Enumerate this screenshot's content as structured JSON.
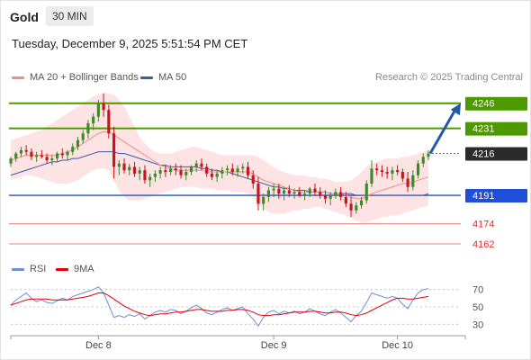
{
  "header": {
    "instrument": "Gold",
    "timeframe": "30 MIN",
    "datetime": "Tuesday, December 9, 2025 5:51:54 PM CET"
  },
  "legend": {
    "ma20_label": "MA 20 + Bollinger Bands",
    "ma50_label": "MA 50",
    "credit": "Research © 2025 Trading Central",
    "rsi_label": "RSI",
    "rsi_ma_label": "9MA"
  },
  "colors": {
    "ma20": "#f28b82",
    "ma50": "#3b5ba5",
    "rsi": "#6b8fd6",
    "rsi_ma": "#e0000b",
    "target_green": "#4c9a00",
    "support_blue": "#1f4fd8",
    "level_red": "#f08080",
    "current_dark": "#2b2b2b",
    "candle_up": "#3f8a28",
    "candle_down": "#c8141e",
    "band_fill": "#fde0e0",
    "arrow": "#2459a8"
  },
  "chart_data": [
    {
      "type": "candlestick",
      "x_labels": [
        "Dec 8",
        "Dec 9",
        "Dec 10"
      ],
      "y_range": [
        4155,
        4255
      ],
      "price_levels": [
        {
          "name": "resistance-2",
          "value": 4246,
          "label": "4246",
          "kind": "target"
        },
        {
          "name": "resistance-1",
          "value": 4231,
          "label": "4231",
          "kind": "target"
        },
        {
          "name": "current",
          "value": 4216,
          "label": "4216",
          "kind": "current"
        },
        {
          "name": "pivot",
          "value": 4191,
          "label": "4191",
          "kind": "pivot"
        },
        {
          "name": "support-1",
          "value": 4174,
          "label": "4174",
          "kind": "support"
        },
        {
          "name": "support-2",
          "value": 4162,
          "label": "4162",
          "kind": "support"
        }
      ],
      "candles": [
        [
          4210,
          4214,
          4208,
          4213
        ],
        [
          4213,
          4217,
          4211,
          4216
        ],
        [
          4216,
          4220,
          4214,
          4218
        ],
        [
          4218,
          4221,
          4215,
          4217
        ],
        [
          4217,
          4219,
          4212,
          4214
        ],
        [
          4214,
          4217,
          4211,
          4215
        ],
        [
          4215,
          4218,
          4213,
          4214
        ],
        [
          4214,
          4216,
          4210,
          4212
        ],
        [
          4212,
          4215,
          4209,
          4213
        ],
        [
          4213,
          4217,
          4211,
          4216
        ],
        [
          4216,
          4219,
          4213,
          4215
        ],
        [
          4215,
          4218,
          4212,
          4217
        ],
        [
          4217,
          4222,
          4215,
          4220
        ],
        [
          4220,
          4226,
          4218,
          4224
        ],
        [
          4224,
          4230,
          4222,
          4228
        ],
        [
          4228,
          4236,
          4225,
          4234
        ],
        [
          4234,
          4240,
          4230,
          4238
        ],
        [
          4238,
          4248,
          4235,
          4246
        ],
        [
          4246,
          4252,
          4238,
          4242
        ],
        [
          4242,
          4245,
          4225,
          4228
        ],
        [
          4228,
          4232,
          4201,
          4208
        ],
        [
          4208,
          4212,
          4203,
          4210
        ],
        [
          4210,
          4213,
          4204,
          4206
        ],
        [
          4206,
          4210,
          4203,
          4208
        ],
        [
          4208,
          4211,
          4202,
          4204
        ],
        [
          4204,
          4208,
          4200,
          4206
        ],
        [
          4206,
          4209,
          4198,
          4200
        ],
        [
          4200,
          4204,
          4196,
          4202
        ],
        [
          4202,
          4206,
          4199,
          4204
        ],
        [
          4204,
          4208,
          4201,
          4206
        ],
        [
          4206,
          4209,
          4202,
          4205
        ],
        [
          4205,
          4209,
          4203,
          4207
        ],
        [
          4207,
          4210,
          4203,
          4206
        ],
        [
          4206,
          4209,
          4201,
          4203
        ],
        [
          4203,
          4207,
          4200,
          4205
        ],
        [
          4205,
          4209,
          4203,
          4208
        ],
        [
          4208,
          4212,
          4205,
          4210
        ],
        [
          4210,
          4213,
          4206,
          4208
        ],
        [
          4208,
          4210,
          4202,
          4204
        ],
        [
          4204,
          4207,
          4200,
          4202
        ],
        [
          4202,
          4206,
          4199,
          4204
        ],
        [
          4204,
          4208,
          4201,
          4206
        ],
        [
          4206,
          4209,
          4203,
          4207
        ],
        [
          4207,
          4210,
          4203,
          4205
        ],
        [
          4205,
          4209,
          4202,
          4207
        ],
        [
          4207,
          4210,
          4204,
          4208
        ],
        [
          4208,
          4211,
          4201,
          4203
        ],
        [
          4203,
          4206,
          4195,
          4198
        ],
        [
          4198,
          4202,
          4182,
          4186
        ],
        [
          4186,
          4192,
          4182,
          4190
        ],
        [
          4190,
          4196,
          4187,
          4194
        ],
        [
          4194,
          4198,
          4190,
          4195
        ],
        [
          4195,
          4198,
          4189,
          4192
        ],
        [
          4192,
          4196,
          4188,
          4194
        ],
        [
          4194,
          4197,
          4190,
          4192
        ],
        [
          4192,
          4195,
          4189,
          4193
        ],
        [
          4193,
          4196,
          4190,
          4191
        ],
        [
          4191,
          4194,
          4188,
          4192
        ],
        [
          4192,
          4196,
          4190,
          4195
        ],
        [
          4195,
          4198,
          4191,
          4193
        ],
        [
          4193,
          4196,
          4189,
          4191
        ],
        [
          4191,
          4194,
          4186,
          4189
        ],
        [
          4189,
          4193,
          4185,
          4191
        ],
        [
          4191,
          4195,
          4189,
          4193
        ],
        [
          4193,
          4196,
          4188,
          4190
        ],
        [
          4190,
          4193,
          4184,
          4186
        ],
        [
          4186,
          4190,
          4178,
          4182
        ],
        [
          4182,
          4187,
          4180,
          4185
        ],
        [
          4185,
          4190,
          4183,
          4188
        ],
        [
          4188,
          4200,
          4186,
          4198
        ],
        [
          4198,
          4212,
          4196,
          4207
        ],
        [
          4207,
          4210,
          4203,
          4206
        ],
        [
          4206,
          4209,
          4202,
          4205
        ],
        [
          4205,
          4208,
          4201,
          4204
        ],
        [
          4204,
          4208,
          4200,
          4206
        ],
        [
          4206,
          4209,
          4203,
          4205
        ],
        [
          4205,
          4207,
          4199,
          4201
        ],
        [
          4201,
          4205,
          4193,
          4196
        ],
        [
          4196,
          4206,
          4194,
          4203
        ],
        [
          4203,
          4212,
          4201,
          4210
        ],
        [
          4210,
          4216,
          4208,
          4214
        ],
        [
          4214,
          4218,
          4212,
          4216
        ]
      ],
      "ma20": [
        4212,
        4213,
        4214,
        4215,
        4215,
        4215,
        4215,
        4215,
        4215,
        4215,
        4216,
        4217,
        4218,
        4220,
        4222,
        4224,
        4226,
        4228,
        4229,
        4229,
        4227,
        4225,
        4223,
        4221,
        4219,
        4217,
        4215,
        4213,
        4211,
        4209,
        4208,
        4207,
        4206,
        4206,
        4206,
        4206,
        4206,
        4206,
        4205,
        4205,
        4205,
        4205,
        4205,
        4205,
        4205,
        4205,
        4205,
        4204,
        4202,
        4200,
        4199,
        4198,
        4197,
        4196,
        4195,
        4194,
        4193,
        4193,
        4193,
        4193,
        4193,
        4193,
        4192,
        4192,
        4192,
        4191,
        4190,
        4189,
        4189,
        4190,
        4192,
        4193,
        4194,
        4195,
        4196,
        4197,
        4198,
        4198,
        4199,
        4200,
        4201,
        4202
      ],
      "ma50": [
        4203,
        4204,
        4205,
        4206,
        4207,
        4208,
        4209,
        4210,
        4211,
        4211,
        4212,
        4212,
        4213,
        4213,
        4214,
        4215,
        4216,
        4217,
        4217,
        4217,
        4217,
        4216,
        4216,
        4215,
        4214,
        4213,
        4212,
        4211,
        4210,
        4209,
        4209,
        4208,
        4208,
        4208,
        4208,
        4208,
        4208,
        4207,
        4207,
        4206,
        4206,
        4205,
        4205,
        4204,
        4203,
        4202,
        4201,
        4200,
        4199,
        4198,
        4197,
        4196,
        4196,
        4195,
        4195,
        4194,
        4194,
        4194,
        4193,
        4193,
        4193,
        4193,
        4192,
        4192,
        4192,
        4192,
        4192,
        4191,
        4191,
        4191,
        4191,
        4191,
        4191,
        4191,
        4191,
        4191,
        4191,
        4191,
        4191,
        4191,
        4191,
        4192
      ],
      "bb_upper": [
        4224,
        4225,
        4226,
        4227,
        4228,
        4229,
        4230,
        4232,
        4234,
        4236,
        4238,
        4240,
        4242,
        4244,
        4246,
        4248,
        4250,
        4251,
        4252,
        4252,
        4251,
        4248,
        4244,
        4238,
        4232,
        4226,
        4222,
        4219,
        4217,
        4216,
        4216,
        4216,
        4217,
        4218,
        4219,
        4220,
        4220,
        4219,
        4218,
        4217,
        4216,
        4215,
        4215,
        4215,
        4215,
        4215,
        4215,
        4215,
        4214,
        4212,
        4210,
        4208,
        4206,
        4205,
        4204,
        4203,
        4203,
        4203,
        4202,
        4202,
        4201,
        4201,
        4200,
        4199,
        4199,
        4199,
        4200,
        4202,
        4205,
        4208,
        4210,
        4211,
        4212,
        4213,
        4213,
        4213,
        4214,
        4214,
        4215,
        4216,
        4217,
        4218
      ],
      "bb_lower": [
        4200,
        4201,
        4202,
        4203,
        4203,
        4202,
        4201,
        4200,
        4199,
        4198,
        4198,
        4198,
        4199,
        4200,
        4202,
        4204,
        4206,
        4207,
        4207,
        4206,
        4200,
        4194,
        4190,
        4188,
        4188,
        4188,
        4189,
        4190,
        4191,
        4192,
        4193,
        4194,
        4195,
        4196,
        4196,
        4196,
        4196,
        4195,
        4195,
        4195,
        4194,
        4194,
        4194,
        4193,
        4193,
        4193,
        4192,
        4190,
        4186,
        4183,
        4181,
        4180,
        4180,
        4180,
        4181,
        4182,
        4182,
        4183,
        4183,
        4184,
        4184,
        4183,
        4182,
        4181,
        4180,
        4179,
        4178,
        4176,
        4175,
        4175,
        4176,
        4177,
        4178,
        4178,
        4179,
        4179,
        4180,
        4181,
        4182,
        4183,
        4184,
        4185
      ],
      "forecast_arrow": {
        "from": 4216,
        "to": 4246
      }
    },
    {
      "type": "line",
      "name": "RSI",
      "y_ticks": [
        70,
        50,
        30
      ],
      "y_range": [
        20,
        80
      ],
      "series": [
        {
          "name": "RSI",
          "values": [
            52,
            58,
            62,
            66,
            60,
            56,
            58,
            55,
            54,
            57,
            60,
            58,
            62,
            64,
            66,
            68,
            70,
            73,
            66,
            52,
            38,
            40,
            38,
            41,
            39,
            42,
            36,
            40,
            44,
            46,
            44,
            47,
            46,
            42,
            45,
            49,
            52,
            48,
            43,
            41,
            44,
            47,
            49,
            46,
            48,
            50,
            42,
            36,
            28,
            38,
            44,
            46,
            42,
            45,
            43,
            45,
            42,
            44,
            48,
            45,
            42,
            40,
            44,
            47,
            43,
            38,
            33,
            40,
            45,
            55,
            66,
            64,
            62,
            60,
            62,
            60,
            53,
            48,
            58,
            66,
            70,
            71
          ]
        },
        {
          "name": "9MA",
          "values": [
            52,
            54,
            56,
            58,
            59,
            59,
            59,
            59,
            58,
            58,
            58,
            58,
            59,
            60,
            61,
            62,
            64,
            66,
            66,
            63,
            59,
            55,
            51,
            48,
            45,
            43,
            41,
            40,
            41,
            42,
            42,
            43,
            44,
            44,
            45,
            46,
            47,
            47,
            46,
            45,
            45,
            45,
            46,
            46,
            47,
            47,
            46,
            44,
            41,
            40,
            40,
            41,
            41,
            42,
            43,
            44,
            44,
            44,
            45,
            45,
            44,
            43,
            43,
            44,
            44,
            43,
            41,
            40,
            41,
            43,
            46,
            49,
            52,
            55,
            58,
            60,
            60,
            59,
            59,
            60,
            61,
            62
          ]
        }
      ]
    }
  ]
}
